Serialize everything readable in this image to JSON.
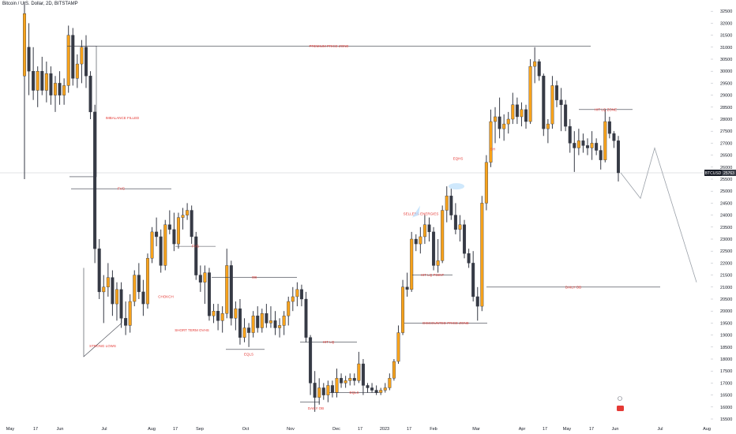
{
  "header": {
    "title": "Bitcoin / U.S. Dollar, 2D, BITSTAMP"
  },
  "price_tag": {
    "symbol": "BTCUSD",
    "value": "25763"
  },
  "chart_data": {
    "type": "candlestick",
    "title": "Bitcoin / U.S. Dollar, 2D, BITSTAMP",
    "ylim": [
      15500,
      32500
    ],
    "y_ticks": [
      32500,
      32000,
      31500,
      31000,
      30500,
      30000,
      29500,
      29000,
      28500,
      28000,
      27500,
      27000,
      26500,
      26000,
      25500,
      25000,
      24500,
      24000,
      23500,
      23000,
      22500,
      22000,
      21500,
      21000,
      20500,
      20000,
      19500,
      19000,
      18500,
      18000,
      17500,
      17000,
      16500,
      16000,
      15500
    ],
    "x_ticks": [
      "May",
      "17",
      "Jun",
      "Jul",
      "Aug",
      "17",
      "Sep",
      "Oct",
      "Nov",
      "Dec",
      "17",
      "2023",
      "17",
      "Feb",
      "Mar",
      "Apr",
      "17",
      "May",
      "17",
      "Jun",
      "Jul",
      "Aug"
    ],
    "last_price": 25763,
    "candles": [
      {
        "o": 29800,
        "h": 32900,
        "l": 25500,
        "c": 32400
      },
      {
        "o": 31000,
        "h": 32000,
        "l": 29000,
        "c": 30000
      },
      {
        "o": 30000,
        "h": 31000,
        "l": 28800,
        "c": 29200
      },
      {
        "o": 29200,
        "h": 30200,
        "l": 28500,
        "c": 30000
      },
      {
        "o": 30000,
        "h": 30600,
        "l": 29000,
        "c": 29200
      },
      {
        "o": 29200,
        "h": 30400,
        "l": 28700,
        "c": 29900
      },
      {
        "o": 29900,
        "h": 30200,
        "l": 28600,
        "c": 29000
      },
      {
        "o": 29000,
        "h": 29800,
        "l": 28300,
        "c": 29500
      },
      {
        "o": 29500,
        "h": 30000,
        "l": 28600,
        "c": 29000
      },
      {
        "o": 29000,
        "h": 29700,
        "l": 28600,
        "c": 29400
      },
      {
        "o": 29400,
        "h": 31900,
        "l": 29100,
        "c": 31500
      },
      {
        "o": 31500,
        "h": 31800,
        "l": 29400,
        "c": 29700
      },
      {
        "o": 29700,
        "h": 30700,
        "l": 29300,
        "c": 30300
      },
      {
        "o": 30300,
        "h": 31300,
        "l": 29500,
        "c": 31000
      },
      {
        "o": 31000,
        "h": 31500,
        "l": 29300,
        "c": 29800
      },
      {
        "o": 29800,
        "h": 30000,
        "l": 28000,
        "c": 28300
      },
      {
        "o": 28300,
        "h": 28600,
        "l": 22000,
        "c": 22600
      },
      {
        "o": 22600,
        "h": 23000,
        "l": 20500,
        "c": 20800
      },
      {
        "o": 20800,
        "h": 21500,
        "l": 19500,
        "c": 21000
      },
      {
        "o": 21000,
        "h": 22000,
        "l": 20600,
        "c": 21400
      },
      {
        "o": 21400,
        "h": 21700,
        "l": 19800,
        "c": 20300
      },
      {
        "o": 20300,
        "h": 21200,
        "l": 19600,
        "c": 20900
      },
      {
        "o": 20900,
        "h": 21200,
        "l": 19300,
        "c": 19700
      },
      {
        "o": 19700,
        "h": 20400,
        "l": 19000,
        "c": 19400
      },
      {
        "o": 19400,
        "h": 20700,
        "l": 19100,
        "c": 20400
      },
      {
        "o": 20400,
        "h": 21700,
        "l": 20200,
        "c": 21500
      },
      {
        "o": 21500,
        "h": 22000,
        "l": 20500,
        "c": 20800
      },
      {
        "o": 20800,
        "h": 21300,
        "l": 19800,
        "c": 20300
      },
      {
        "o": 20300,
        "h": 22400,
        "l": 20100,
        "c": 22200
      },
      {
        "o": 22200,
        "h": 23500,
        "l": 22000,
        "c": 23300
      },
      {
        "o": 23300,
        "h": 23900,
        "l": 22700,
        "c": 23100
      },
      {
        "o": 23100,
        "h": 23400,
        "l": 21600,
        "c": 21900
      },
      {
        "o": 21900,
        "h": 23800,
        "l": 21700,
        "c": 23600
      },
      {
        "o": 23600,
        "h": 24200,
        "l": 23200,
        "c": 23400
      },
      {
        "o": 23400,
        "h": 24100,
        "l": 22500,
        "c": 22800
      },
      {
        "o": 22800,
        "h": 24100,
        "l": 22600,
        "c": 23900
      },
      {
        "o": 23900,
        "h": 24300,
        "l": 23400,
        "c": 24000
      },
      {
        "o": 24000,
        "h": 24500,
        "l": 23800,
        "c": 24200
      },
      {
        "o": 24200,
        "h": 24400,
        "l": 22800,
        "c": 23100
      },
      {
        "o": 23100,
        "h": 23300,
        "l": 21300,
        "c": 21500
      },
      {
        "o": 21500,
        "h": 21900,
        "l": 20800,
        "c": 21200
      },
      {
        "o": 21200,
        "h": 21900,
        "l": 20300,
        "c": 21600
      },
      {
        "o": 21600,
        "h": 21800,
        "l": 19600,
        "c": 19800
      },
      {
        "o": 19800,
        "h": 20300,
        "l": 19500,
        "c": 20000
      },
      {
        "o": 20000,
        "h": 20300,
        "l": 19200,
        "c": 19600
      },
      {
        "o": 19600,
        "h": 20200,
        "l": 19100,
        "c": 19900
      },
      {
        "o": 19900,
        "h": 22600,
        "l": 19700,
        "c": 21900
      },
      {
        "o": 21900,
        "h": 22100,
        "l": 19400,
        "c": 19700
      },
      {
        "o": 19700,
        "h": 20400,
        "l": 19200,
        "c": 20100
      },
      {
        "o": 20100,
        "h": 20500,
        "l": 18600,
        "c": 18900
      },
      {
        "o": 18900,
        "h": 19700,
        "l": 18700,
        "c": 19300
      },
      {
        "o": 19300,
        "h": 19500,
        "l": 18500,
        "c": 19100
      },
      {
        "o": 19100,
        "h": 20000,
        "l": 18900,
        "c": 19800
      },
      {
        "o": 19800,
        "h": 20200,
        "l": 19100,
        "c": 19300
      },
      {
        "o": 19300,
        "h": 20100,
        "l": 19100,
        "c": 19900
      },
      {
        "o": 19900,
        "h": 20300,
        "l": 19300,
        "c": 19500
      },
      {
        "o": 19500,
        "h": 20200,
        "l": 19300,
        "c": 19600
      },
      {
        "o": 19600,
        "h": 20000,
        "l": 19000,
        "c": 19300
      },
      {
        "o": 19300,
        "h": 19700,
        "l": 18900,
        "c": 19400
      },
      {
        "o": 19400,
        "h": 20000,
        "l": 19000,
        "c": 19800
      },
      {
        "o": 19800,
        "h": 20600,
        "l": 19400,
        "c": 20400
      },
      {
        "o": 20400,
        "h": 21000,
        "l": 20000,
        "c": 20600
      },
      {
        "o": 20600,
        "h": 21200,
        "l": 20200,
        "c": 20900
      },
      {
        "o": 20900,
        "h": 21100,
        "l": 20200,
        "c": 20500
      },
      {
        "o": 20500,
        "h": 20800,
        "l": 18700,
        "c": 18900
      },
      {
        "o": 18900,
        "h": 19000,
        "l": 16500,
        "c": 17000
      },
      {
        "o": 17000,
        "h": 17500,
        "l": 15800,
        "c": 16400
      },
      {
        "o": 16400,
        "h": 17200,
        "l": 16100,
        "c": 16800
      },
      {
        "o": 16800,
        "h": 17000,
        "l": 16300,
        "c": 16500
      },
      {
        "o": 16500,
        "h": 17100,
        "l": 16200,
        "c": 16900
      },
      {
        "o": 16900,
        "h": 17100,
        "l": 16400,
        "c": 16600
      },
      {
        "o": 16600,
        "h": 17600,
        "l": 16400,
        "c": 17200
      },
      {
        "o": 17200,
        "h": 17400,
        "l": 16800,
        "c": 17000
      },
      {
        "o": 17000,
        "h": 17300,
        "l": 16800,
        "c": 17100
      },
      {
        "o": 17100,
        "h": 17400,
        "l": 16900,
        "c": 17200
      },
      {
        "o": 17200,
        "h": 17400,
        "l": 16900,
        "c": 17100
      },
      {
        "o": 17100,
        "h": 18300,
        "l": 17000,
        "c": 17800
      },
      {
        "o": 17800,
        "h": 18000,
        "l": 16500,
        "c": 16900
      },
      {
        "o": 16900,
        "h": 17000,
        "l": 16600,
        "c": 16800
      },
      {
        "o": 16800,
        "h": 17000,
        "l": 16600,
        "c": 16700
      },
      {
        "o": 16700,
        "h": 16900,
        "l": 16500,
        "c": 16600
      },
      {
        "o": 16600,
        "h": 16800,
        "l": 16500,
        "c": 16700
      },
      {
        "o": 16700,
        "h": 17000,
        "l": 16600,
        "c": 16800
      },
      {
        "o": 16800,
        "h": 17400,
        "l": 16700,
        "c": 17200
      },
      {
        "o": 17200,
        "h": 18000,
        "l": 17100,
        "c": 17900
      },
      {
        "o": 17900,
        "h": 19400,
        "l": 17800,
        "c": 19100
      },
      {
        "o": 19100,
        "h": 21300,
        "l": 19000,
        "c": 21000
      },
      {
        "o": 21000,
        "h": 21600,
        "l": 20600,
        "c": 20900
      },
      {
        "o": 20900,
        "h": 23300,
        "l": 20800,
        "c": 23000
      },
      {
        "o": 23000,
        "h": 23200,
        "l": 22500,
        "c": 22800
      },
      {
        "o": 22800,
        "h": 23500,
        "l": 22400,
        "c": 23100
      },
      {
        "o": 23100,
        "h": 24000,
        "l": 22800,
        "c": 23600
      },
      {
        "o": 23600,
        "h": 23900,
        "l": 22900,
        "c": 23300
      },
      {
        "o": 23300,
        "h": 23500,
        "l": 21700,
        "c": 21900
      },
      {
        "o": 21900,
        "h": 23000,
        "l": 21600,
        "c": 22100
      },
      {
        "o": 22100,
        "h": 24400,
        "l": 22000,
        "c": 24200
      },
      {
        "o": 24200,
        "h": 25200,
        "l": 23700,
        "c": 24800
      },
      {
        "o": 24800,
        "h": 25100,
        "l": 23800,
        "c": 24000
      },
      {
        "o": 24000,
        "h": 24500,
        "l": 23200,
        "c": 23400
      },
      {
        "o": 23400,
        "h": 24000,
        "l": 22900,
        "c": 23600
      },
      {
        "o": 23600,
        "h": 23800,
        "l": 22200,
        "c": 22400
      },
      {
        "o": 22400,
        "h": 22600,
        "l": 21800,
        "c": 22000
      },
      {
        "o": 22000,
        "h": 22500,
        "l": 20400,
        "c": 20600
      },
      {
        "o": 20600,
        "h": 21000,
        "l": 19600,
        "c": 20200
      },
      {
        "o": 20200,
        "h": 24800,
        "l": 20000,
        "c": 24500
      },
      {
        "o": 24500,
        "h": 26500,
        "l": 24200,
        "c": 26200
      },
      {
        "o": 26200,
        "h": 28400,
        "l": 26000,
        "c": 27900
      },
      {
        "o": 27900,
        "h": 28500,
        "l": 27000,
        "c": 28100
      },
      {
        "o": 28100,
        "h": 28900,
        "l": 27200,
        "c": 27600
      },
      {
        "o": 27600,
        "h": 28200,
        "l": 27100,
        "c": 27800
      },
      {
        "o": 27800,
        "h": 28300,
        "l": 27400,
        "c": 28000
      },
      {
        "o": 28000,
        "h": 29100,
        "l": 27800,
        "c": 28600
      },
      {
        "o": 28600,
        "h": 28900,
        "l": 27800,
        "c": 28100
      },
      {
        "o": 28100,
        "h": 28700,
        "l": 27700,
        "c": 28400
      },
      {
        "o": 28400,
        "h": 28600,
        "l": 27600,
        "c": 27900
      },
      {
        "o": 27900,
        "h": 30500,
        "l": 27800,
        "c": 30200
      },
      {
        "o": 30200,
        "h": 31000,
        "l": 29500,
        "c": 30400
      },
      {
        "o": 30400,
        "h": 30500,
        "l": 29600,
        "c": 29800
      },
      {
        "o": 29800,
        "h": 29900,
        "l": 27300,
        "c": 27600
      },
      {
        "o": 27600,
        "h": 28000,
        "l": 27000,
        "c": 27800
      },
      {
        "o": 27800,
        "h": 29800,
        "l": 27600,
        "c": 29400
      },
      {
        "o": 29400,
        "h": 29600,
        "l": 28500,
        "c": 28800
      },
      {
        "o": 28800,
        "h": 29300,
        "l": 27500,
        "c": 28600
      },
      {
        "o": 28600,
        "h": 28800,
        "l": 27500,
        "c": 27700
      },
      {
        "o": 27700,
        "h": 28000,
        "l": 26600,
        "c": 27000
      },
      {
        "o": 27000,
        "h": 27500,
        "l": 25800,
        "c": 26800
      },
      {
        "o": 26800,
        "h": 27600,
        "l": 26500,
        "c": 27100
      },
      {
        "o": 27100,
        "h": 27400,
        "l": 26600,
        "c": 26900
      },
      {
        "o": 26900,
        "h": 27200,
        "l": 26500,
        "c": 26800
      },
      {
        "o": 26800,
        "h": 27500,
        "l": 26300,
        "c": 27000
      },
      {
        "o": 27000,
        "h": 27200,
        "l": 26500,
        "c": 26700
      },
      {
        "o": 26700,
        "h": 26900,
        "l": 25900,
        "c": 26300
      },
      {
        "o": 26300,
        "h": 28400,
        "l": 26200,
        "c": 27900
      },
      {
        "o": 27900,
        "h": 28100,
        "l": 27200,
        "c": 27400
      },
      {
        "o": 27400,
        "h": 27500,
        "l": 26800,
        "c": 27100
      },
      {
        "o": 27100,
        "h": 27300,
        "l": 25400,
        "c": 25763
      }
    ],
    "levels": [
      {
        "label": "PREMIUM PRICE ZONE",
        "price": 31050
      },
      {
        "label": "IMBALANCE FILLED",
        "price": 28000
      },
      {
        "label": "FVG",
        "price": 25100
      },
      {
        "label": "FVG",
        "price": 22700
      },
      {
        "label": "OB",
        "price": 21400
      },
      {
        "label": "CHOKCH",
        "price": 20600
      },
      {
        "label": "SHORT TERM OVHS",
        "price": 19200
      },
      {
        "label": "EQLS",
        "price": 18200
      },
      {
        "label": "STRONG LOWS",
        "price": 18100
      },
      {
        "label": "HIT LQ",
        "price": 18700
      },
      {
        "label": "DAILY OB",
        "price": 16000
      },
      {
        "label": "EQLS",
        "price": 16600
      },
      {
        "label": "DISCOUNTED PRICE ZONE",
        "price": 19500
      },
      {
        "label": "HIT LQ POINT",
        "price": 21500
      },
      {
        "label": "SELLERS ENERGIES",
        "price": 24000
      },
      {
        "label": "EQHS",
        "price": 25500
      },
      {
        "label": "SH",
        "price": 26700
      },
      {
        "label": "HIT LQ ZONE",
        "price": 28400
      },
      {
        "label": "DAILY OB",
        "price": 21000
      }
    ],
    "projection": [
      25763,
      24700,
      26800,
      21200
    ],
    "colors": {
      "up": "#f7a21b",
      "down": "#363a45",
      "wick": "#363a45",
      "annotation": "#e53935",
      "grid": "#d9dce3",
      "projection": "#9aa0a8",
      "highlight": "#bbdefb",
      "marker": "#e53935"
    }
  }
}
